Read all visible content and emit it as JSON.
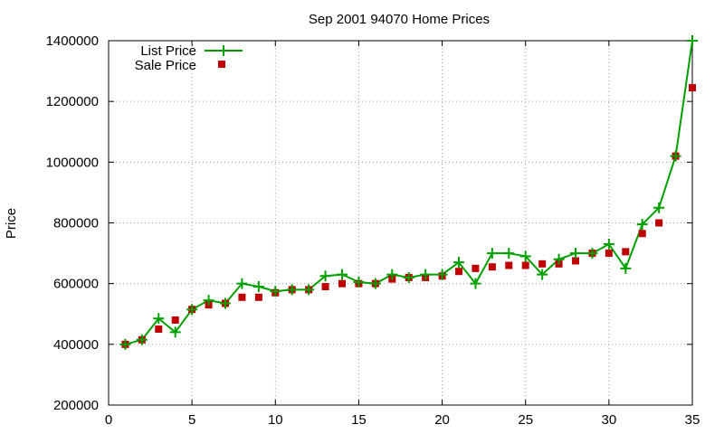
{
  "chart_data": {
    "type": "line",
    "title": "Sep 2001 94070 Home Prices",
    "xlabel": "",
    "ylabel": "Price",
    "xlim": [
      0,
      35
    ],
    "ylim": [
      200000,
      1400000
    ],
    "xticks": [
      "0",
      "5",
      "10",
      "15",
      "20",
      "25",
      "30",
      "35"
    ],
    "yticks": [
      "200000",
      "400000",
      "600000",
      "800000",
      "1000000",
      "1200000",
      "1400000"
    ],
    "grid": true,
    "legend_position": "top-left",
    "x": [
      1,
      2,
      3,
      4,
      5,
      6,
      7,
      8,
      9,
      10,
      11,
      12,
      13,
      14,
      15,
      16,
      17,
      18,
      19,
      20,
      21,
      22,
      23,
      24,
      25,
      26,
      27,
      28,
      29,
      30,
      31,
      32,
      33,
      34,
      35
    ],
    "series": [
      {
        "name": "List Price",
        "style": "line-with-plus-markers",
        "color": "#00a000",
        "values": [
          400000,
          415000,
          485000,
          440000,
          515000,
          545000,
          535000,
          600000,
          590000,
          575000,
          580000,
          580000,
          625000,
          630000,
          605000,
          600000,
          630000,
          620000,
          630000,
          630000,
          670000,
          600000,
          700000,
          700000,
          690000,
          630000,
          680000,
          700000,
          700000,
          730000,
          650000,
          795000,
          850000,
          1020000,
          1400000
        ]
      },
      {
        "name": "Sale Price",
        "style": "square-points",
        "color": "#c00000",
        "values": [
          400000,
          415000,
          450000,
          480000,
          515000,
          530000,
          535000,
          555000,
          555000,
          570000,
          580000,
          580000,
          590000,
          600000,
          600000,
          600000,
          615000,
          620000,
          620000,
          625000,
          640000,
          650000,
          655000,
          660000,
          660000,
          665000,
          665000,
          675000,
          700000,
          700000,
          705000,
          765000,
          800000,
          1020000,
          1245000
        ]
      }
    ]
  }
}
